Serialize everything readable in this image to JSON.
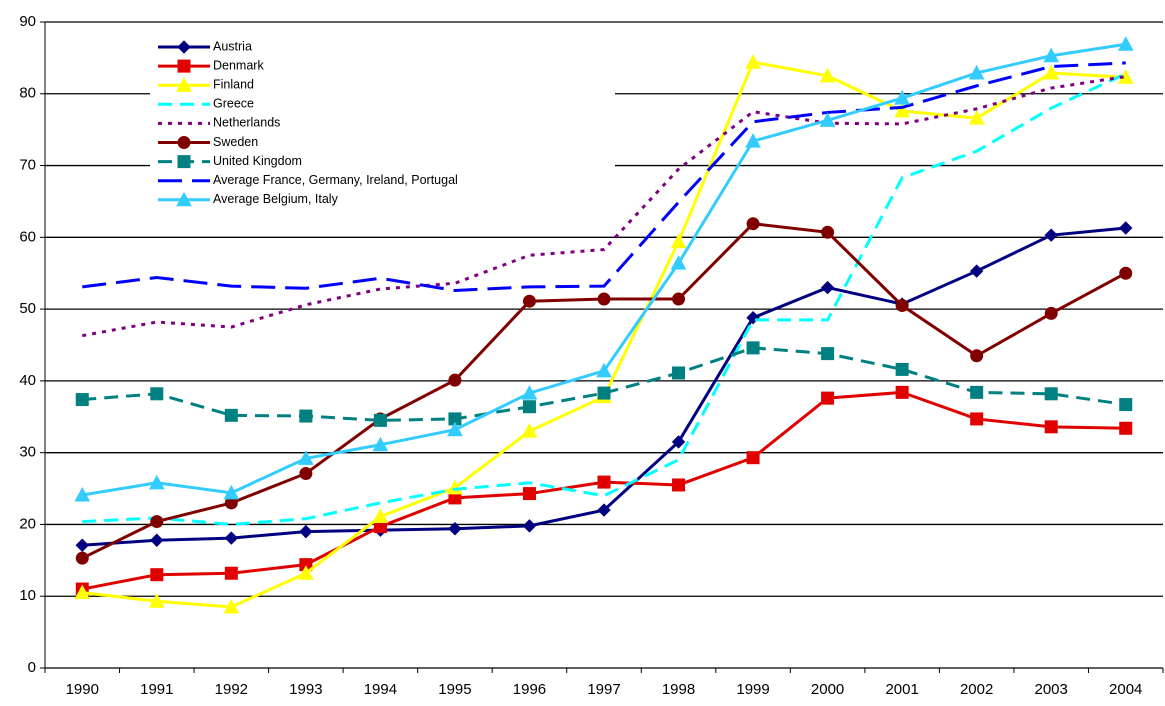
{
  "chart_data": {
    "type": "line",
    "categories": [
      "1990",
      "1991",
      "1992",
      "1993",
      "1994",
      "1995",
      "1996",
      "1997",
      "1998",
      "1999",
      "2000",
      "2001",
      "2002",
      "2003",
      "2004"
    ],
    "ylim": [
      0,
      90
    ],
    "yticks": [
      0,
      10,
      20,
      30,
      40,
      50,
      60,
      70,
      80,
      90
    ],
    "grid": true,
    "legend": "upper left",
    "series": [
      {
        "name": "Austria",
        "color": "#000080",
        "marker": "diamond",
        "dash": "solid",
        "values": [
          17.1,
          17.8,
          18.1,
          19.0,
          19.2,
          19.4,
          19.8,
          22.0,
          31.5,
          48.8,
          53.0,
          50.7,
          55.3,
          60.3,
          61.3
        ]
      },
      {
        "name": "Denmark",
        "color": "#e00000",
        "marker": "square",
        "dash": "solid",
        "values": [
          11.0,
          13.0,
          13.2,
          14.4,
          19.7,
          23.7,
          24.3,
          25.9,
          25.5,
          29.3,
          37.6,
          38.4,
          34.7,
          33.6,
          33.4
        ]
      },
      {
        "name": "Finland",
        "color": "#ffff00",
        "marker": "triangle",
        "dash": "solid",
        "values": [
          10.5,
          9.3,
          8.5,
          13.2,
          21.1,
          25.1,
          33.0,
          37.8,
          59.4,
          84.4,
          82.5,
          77.6,
          76.6,
          82.9,
          82.3
        ]
      },
      {
        "name": "Greece",
        "color": "#00ffff",
        "marker": "none",
        "dash": "dashed",
        "values": [
          20.4,
          20.9,
          20.0,
          20.8,
          23.0,
          24.9,
          25.8,
          24.0,
          29.0,
          48.5,
          48.5,
          68.3,
          72.0,
          78.0,
          82.8
        ]
      },
      {
        "name": "Netherlands",
        "color": "#800080",
        "marker": "none",
        "dash": "dotted",
        "values": [
          46.3,
          48.2,
          47.5,
          50.6,
          52.8,
          53.6,
          57.5,
          58.3,
          69.5,
          77.5,
          75.9,
          75.8,
          77.9,
          80.8,
          82.4
        ]
      },
      {
        "name": "Sweden",
        "color": "#800000",
        "marker": "circle",
        "dash": "solid",
        "values": [
          15.3,
          20.4,
          23.0,
          27.1,
          34.7,
          40.1,
          51.1,
          51.4,
          51.4,
          61.9,
          60.7,
          50.5,
          43.5,
          49.4,
          55.0
        ]
      },
      {
        "name": "United Kingdom",
        "color": "#008080",
        "marker": "square",
        "dash": "dashed",
        "values": [
          37.4,
          38.2,
          35.2,
          35.1,
          34.5,
          34.7,
          36.4,
          38.3,
          41.1,
          44.6,
          43.8,
          41.6,
          38.4,
          38.2,
          36.7
        ]
      },
      {
        "name": "Average France, Germany, Ireland, Portugal",
        "color": "#0000ff",
        "marker": "none",
        "dash": "longdash",
        "values": [
          53.1,
          54.4,
          53.2,
          52.9,
          54.3,
          52.6,
          53.1,
          53.2,
          64.9,
          76.1,
          77.4,
          78.1,
          81.1,
          83.8,
          84.3
        ]
      },
      {
        "name": "Average Belgium, Italy",
        "color": "#33ccff",
        "marker": "triangle",
        "dash": "solid",
        "values": [
          24.1,
          25.8,
          24.4,
          29.2,
          31.1,
          33.2,
          38.3,
          41.4,
          56.4,
          73.4,
          76.3,
          79.4,
          82.9,
          85.3,
          86.9
        ]
      }
    ]
  }
}
